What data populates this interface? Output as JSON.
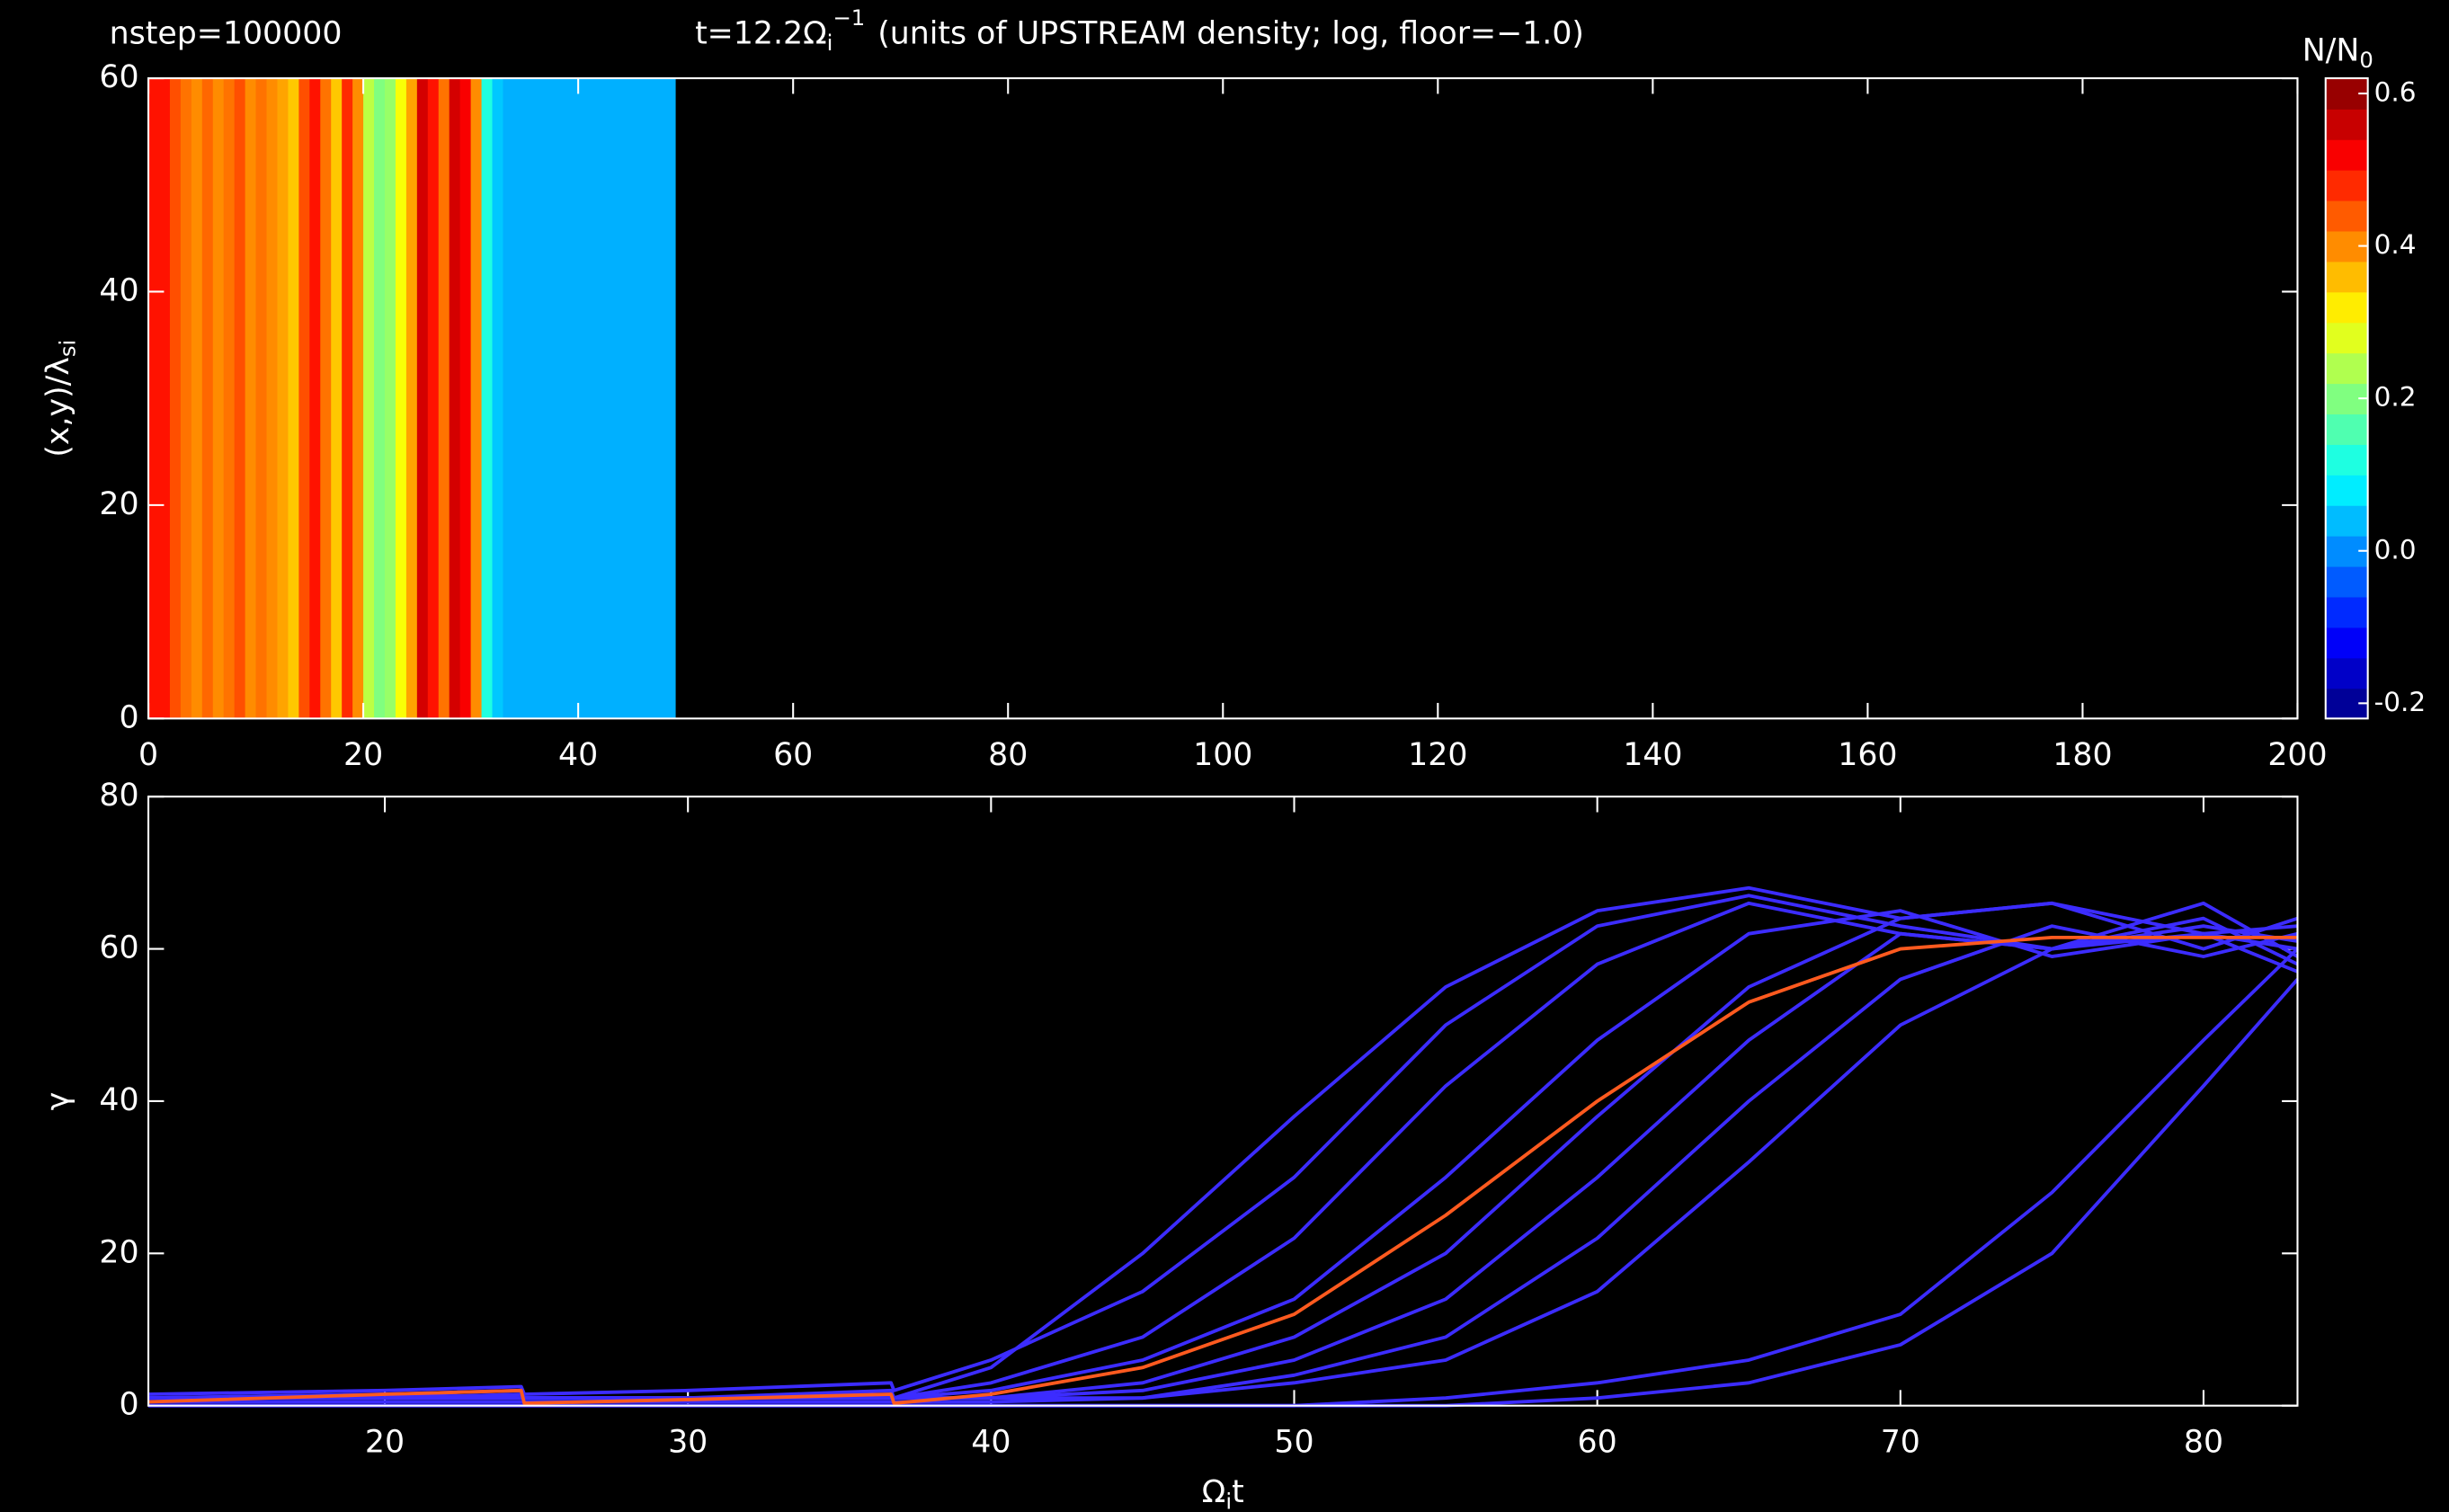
{
  "chart_data": [
    {
      "type": "heatmap",
      "step_label": "nstep=100000",
      "title": {
        "text": "t=12.2Ω",
        "subscript": "i",
        "superscript": "−1",
        "suffix": "(units of UPSTREAM density; log, floor=−1.0)"
      },
      "y_label": {
        "text": "(x,y)/λ",
        "subscript": "si"
      },
      "xlim": [
        0,
        200
      ],
      "xticks": [
        0,
        20,
        40,
        60,
        80,
        100,
        120,
        140,
        160,
        180,
        200
      ],
      "ylim": [
        0,
        60
      ],
      "yticks": [
        0,
        20,
        40,
        60
      ],
      "x_edges": [
        0,
        1,
        2,
        3,
        4,
        5,
        6,
        7,
        8,
        9,
        10,
        11,
        12,
        13,
        14,
        15,
        16,
        17,
        18,
        19,
        20,
        21,
        22,
        23,
        24,
        25,
        26,
        27,
        28,
        29,
        30,
        31,
        32,
        33,
        34,
        35,
        36,
        37,
        38,
        39,
        40,
        41,
        42,
        43,
        44,
        45,
        46,
        47,
        48,
        49
      ],
      "values": [
        0.5,
        0.5,
        0.45,
        0.42,
        0.4,
        0.43,
        0.4,
        0.42,
        0.45,
        0.4,
        0.42,
        0.4,
        0.38,
        0.35,
        0.45,
        0.5,
        0.42,
        0.35,
        0.48,
        0.4,
        0.25,
        0.2,
        0.22,
        0.3,
        0.38,
        0.55,
        0.5,
        0.42,
        0.55,
        0.52,
        0.4,
        0.12,
        0.05,
        0.03,
        0.03,
        0.03,
        0.03,
        0.03,
        0.03,
        0.03,
        0.03,
        0.03,
        0.03,
        0.03,
        0.03,
        0.03,
        0.03,
        0.03,
        0.03
      ],
      "colormap": "jet",
      "colorbar_label": {
        "text": "N/N",
        "subscript": "0"
      },
      "clim": [
        -0.22,
        0.62
      ],
      "cticks": [
        0.6,
        0.4,
        0.2,
        {
          "value": 0,
          "label": "0.0"
        },
        -0.2
      ]
    },
    {
      "type": "line",
      "x_label": {
        "text": "Ω",
        "subscript": "i",
        "suffix": "t"
      },
      "y_label": "γ",
      "xlim": [
        12.2,
        83.1
      ],
      "xticks": [
        20,
        30,
        40,
        50,
        60,
        70,
        80
      ],
      "ylim": [
        0,
        80
      ],
      "yticks": [
        0,
        20,
        40,
        60,
        80
      ],
      "x": [
        12.2,
        20,
        24.5,
        24.6,
        30,
        36.7,
        36.8,
        40,
        45,
        50,
        55,
        60,
        65,
        70,
        75,
        80,
        83.1
      ],
      "series": [
        {
          "color": "#3c2cff",
          "values": [
            1,
            1.5,
            2,
            1,
            1,
            2,
            1,
            5,
            20,
            38,
            55,
            65,
            68,
            64,
            66,
            62,
            63
          ]
        },
        {
          "color": "#3c2cff",
          "values": [
            1.5,
            2,
            2.5,
            1.5,
            2,
            3,
            2,
            6,
            15,
            30,
            50,
            63,
            67,
            63,
            60,
            66,
            59
          ]
        },
        {
          "color": "#3c2cff",
          "values": [
            1,
            1,
            1.5,
            1,
            1,
            1.5,
            1,
            3,
            9,
            22,
            42,
            58,
            66,
            62,
            60,
            63,
            61
          ]
        },
        {
          "color": "#3c2cff",
          "values": [
            1,
            1.5,
            1,
            1,
            1,
            1,
            1,
            2,
            6,
            14,
            30,
            48,
            62,
            65,
            59,
            62,
            60
          ]
        },
        {
          "color": "#3c2cff",
          "values": [
            1,
            1,
            1,
            1,
            1,
            1,
            1,
            1,
            3,
            9,
            20,
            38,
            55,
            64,
            66,
            60,
            64
          ]
        },
        {
          "color": "#3c2cff",
          "values": [
            1,
            1,
            1,
            1,
            1,
            1,
            1,
            1,
            2,
            6,
            14,
            30,
            48,
            62,
            60,
            64,
            58
          ]
        },
        {
          "color": "#3c2cff",
          "values": [
            1,
            1,
            1,
            1,
            1,
            1,
            1,
            1,
            1,
            4,
            9,
            22,
            40,
            56,
            63,
            59,
            62
          ]
        },
        {
          "color": "#3c2cff",
          "values": [
            0.5,
            0.5,
            0.5,
            0.5,
            0.5,
            0.5,
            0.5,
            0.5,
            1,
            3,
            6,
            15,
            32,
            50,
            60,
            62,
            57
          ]
        },
        {
          "color": "#3c2cff",
          "values": [
            0,
            0,
            0,
            0,
            0,
            0,
            0,
            0,
            0,
            0,
            1,
            3,
            6,
            12,
            28,
            48,
            60
          ]
        },
        {
          "color": "#3c2cff",
          "values": [
            0,
            0,
            0,
            0,
            0,
            0,
            0,
            0,
            0,
            0,
            0,
            1,
            3,
            8,
            20,
            42,
            56
          ]
        },
        {
          "color": "#ff5a1f",
          "values": [
            0.5,
            1.5,
            2,
            0.3,
            0.8,
            1.5,
            0.3,
            1.5,
            5,
            12,
            25,
            40,
            53,
            60,
            61.5,
            61.5,
            61.5
          ]
        }
      ]
    }
  ]
}
